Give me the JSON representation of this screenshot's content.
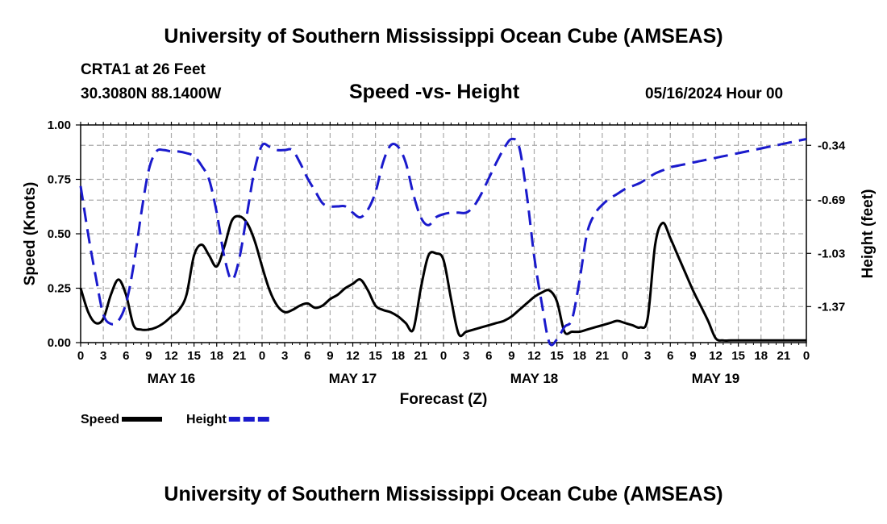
{
  "header": {
    "title": "University of Southern Mississippi Ocean Cube (AMSEAS)",
    "station": "CRTA1 at 26 Feet",
    "coords": "30.3080N  88.1400W",
    "subtitle": "Speed -vs- Height",
    "datetime": "05/16/2024 Hour 00"
  },
  "footer": {
    "title": "University of Southern Mississippi Ocean Cube (AMSEAS)"
  },
  "chart_data": {
    "type": "line",
    "title": "Speed -vs- Height",
    "xlabel": "Forecast (Z)",
    "ylabel": "Speed (Knots)",
    "y2label": "Height (feet)",
    "xlim": [
      0,
      96
    ],
    "ylim": [
      0,
      1.0
    ],
    "y2lim": [
      -1.6,
      -0.21
    ],
    "grid": true,
    "x_tick_labels": [
      "0",
      "3",
      "6",
      "9",
      "12",
      "15",
      "18",
      "21",
      "0",
      "3",
      "6",
      "9",
      "12",
      "15",
      "18",
      "21",
      "0",
      "3",
      "6",
      "9",
      "12",
      "15",
      "18",
      "21",
      "0",
      "3",
      "6",
      "9",
      "12",
      "15",
      "18",
      "21",
      "0"
    ],
    "date_labels": [
      {
        "label": "MAY 16",
        "hour": 12
      },
      {
        "label": "MAY 17",
        "hour": 36
      },
      {
        "label": "MAY 18",
        "hour": 60
      },
      {
        "label": "MAY 19",
        "hour": 84
      }
    ],
    "y_ticks": [
      {
        "value": 0.0,
        "label": "0.00"
      },
      {
        "value": 0.25,
        "label": "0.25"
      },
      {
        "value": 0.5,
        "label": "0.50"
      },
      {
        "value": 0.75,
        "label": "0.75"
      },
      {
        "value": 1.0,
        "label": "1.00"
      }
    ],
    "y2_ticks": [
      {
        "value": -0.34,
        "label": "-0.34"
      },
      {
        "value": -0.69,
        "label": "-0.69"
      },
      {
        "value": -1.03,
        "label": "-1.03"
      },
      {
        "value": -1.37,
        "label": "-1.37"
      }
    ],
    "legend": [
      {
        "name": "Speed",
        "color": "#000000",
        "dashed": false
      },
      {
        "name": "Height",
        "color": "#1a1acc",
        "dashed": true
      }
    ],
    "series": [
      {
        "name": "Speed",
        "axis": "left",
        "color": "#000000",
        "x": [
          0,
          1,
          2,
          3,
          4,
          5,
          6,
          7,
          8,
          9,
          10,
          11,
          12,
          13,
          14,
          15,
          16,
          17,
          18,
          19,
          20,
          21,
          22,
          23,
          24,
          25,
          26,
          27,
          28,
          29,
          30,
          31,
          32,
          33,
          34,
          35,
          36,
          37,
          38,
          39,
          40,
          41,
          42,
          43,
          44,
          45,
          46,
          47,
          48,
          49,
          50,
          51,
          52,
          53,
          54,
          55,
          56,
          57,
          58,
          59,
          60,
          61,
          62,
          63,
          64,
          65,
          66,
          67,
          68,
          69,
          70,
          71,
          72,
          73,
          74,
          75,
          76,
          77,
          78,
          79,
          80,
          81,
          82,
          83,
          84,
          85,
          86,
          87,
          88,
          89,
          90,
          91,
          92,
          93,
          94,
          95,
          96
        ],
        "values": [
          0.25,
          0.14,
          0.09,
          0.11,
          0.22,
          0.29,
          0.22,
          0.08,
          0.06,
          0.06,
          0.07,
          0.09,
          0.12,
          0.15,
          0.22,
          0.4,
          0.45,
          0.4,
          0.35,
          0.44,
          0.56,
          0.58,
          0.55,
          0.47,
          0.35,
          0.24,
          0.17,
          0.14,
          0.15,
          0.17,
          0.18,
          0.16,
          0.17,
          0.2,
          0.22,
          0.25,
          0.27,
          0.29,
          0.24,
          0.17,
          0.15,
          0.14,
          0.12,
          0.09,
          0.06,
          0.25,
          0.4,
          0.41,
          0.38,
          0.2,
          0.04,
          0.05,
          0.06,
          0.07,
          0.08,
          0.09,
          0.1,
          0.12,
          0.15,
          0.18,
          0.21,
          0.23,
          0.24,
          0.19,
          0.05,
          0.05,
          0.05,
          0.06,
          0.07,
          0.08,
          0.09,
          0.1,
          0.09,
          0.08,
          0.07,
          0.11,
          0.45,
          0.55,
          0.48,
          0.4,
          0.32,
          0.24,
          0.17,
          0.1,
          0.02,
          0.01,
          0.01,
          0.01,
          0.01,
          0.01,
          0.01,
          0.01,
          0.01,
          0.01,
          0.01,
          0.01,
          0.01
        ]
      },
      {
        "name": "Height",
        "axis": "right",
        "color": "#1a1acc",
        "x": [
          0,
          1,
          2,
          3,
          4,
          5,
          6,
          7,
          8,
          9,
          10,
          11,
          12,
          13,
          14,
          15,
          16,
          17,
          18,
          19,
          20,
          21,
          22,
          23,
          24,
          25,
          26,
          27,
          28,
          29,
          30,
          31,
          32,
          33,
          34,
          35,
          36,
          37,
          38,
          39,
          40,
          41,
          42,
          43,
          44,
          45,
          46,
          47,
          48,
          49,
          50,
          51,
          52,
          53,
          54,
          55,
          56,
          57,
          58,
          59,
          60,
          61,
          62,
          63,
          64,
          65,
          66,
          67,
          68,
          69,
          70,
          71,
          72,
          73,
          74,
          75,
          76,
          77,
          78,
          79,
          80,
          81,
          82,
          83,
          84,
          85,
          86,
          87,
          88,
          89,
          90,
          91,
          92,
          93,
          94,
          95,
          96
        ],
        "values": [
          -0.6,
          -0.91,
          -1.18,
          -1.42,
          -1.48,
          -1.46,
          -1.35,
          -1.11,
          -0.78,
          -0.5,
          -0.38,
          -0.37,
          -0.38,
          -0.38,
          -0.39,
          -0.41,
          -0.47,
          -0.56,
          -0.77,
          -1.05,
          -1.2,
          -1.06,
          -0.78,
          -0.5,
          -0.34,
          -0.35,
          -0.37,
          -0.37,
          -0.37,
          -0.45,
          -0.55,
          -0.63,
          -0.71,
          -0.73,
          -0.73,
          -0.73,
          -0.77,
          -0.8,
          -0.75,
          -0.64,
          -0.45,
          -0.34,
          -0.35,
          -0.45,
          -0.65,
          -0.8,
          -0.85,
          -0.8,
          -0.78,
          -0.77,
          -0.77,
          -0.77,
          -0.73,
          -0.65,
          -0.55,
          -0.45,
          -0.36,
          -0.3,
          -0.35,
          -0.65,
          -1.05,
          -1.35,
          -1.6,
          -1.58,
          -1.5,
          -1.45,
          -1.2,
          -0.9,
          -0.78,
          -0.72,
          -0.68,
          -0.65,
          -0.62,
          -0.6,
          -0.58,
          -0.55,
          -0.52,
          -0.5,
          -0.48,
          -0.47,
          -0.46,
          -0.45,
          -0.44,
          -0.43,
          -0.42,
          -0.41,
          -0.4,
          -0.39,
          -0.38,
          -0.37,
          -0.36,
          -0.35,
          -0.34,
          -0.33,
          -0.32,
          -0.31,
          -0.3
        ]
      }
    ]
  }
}
